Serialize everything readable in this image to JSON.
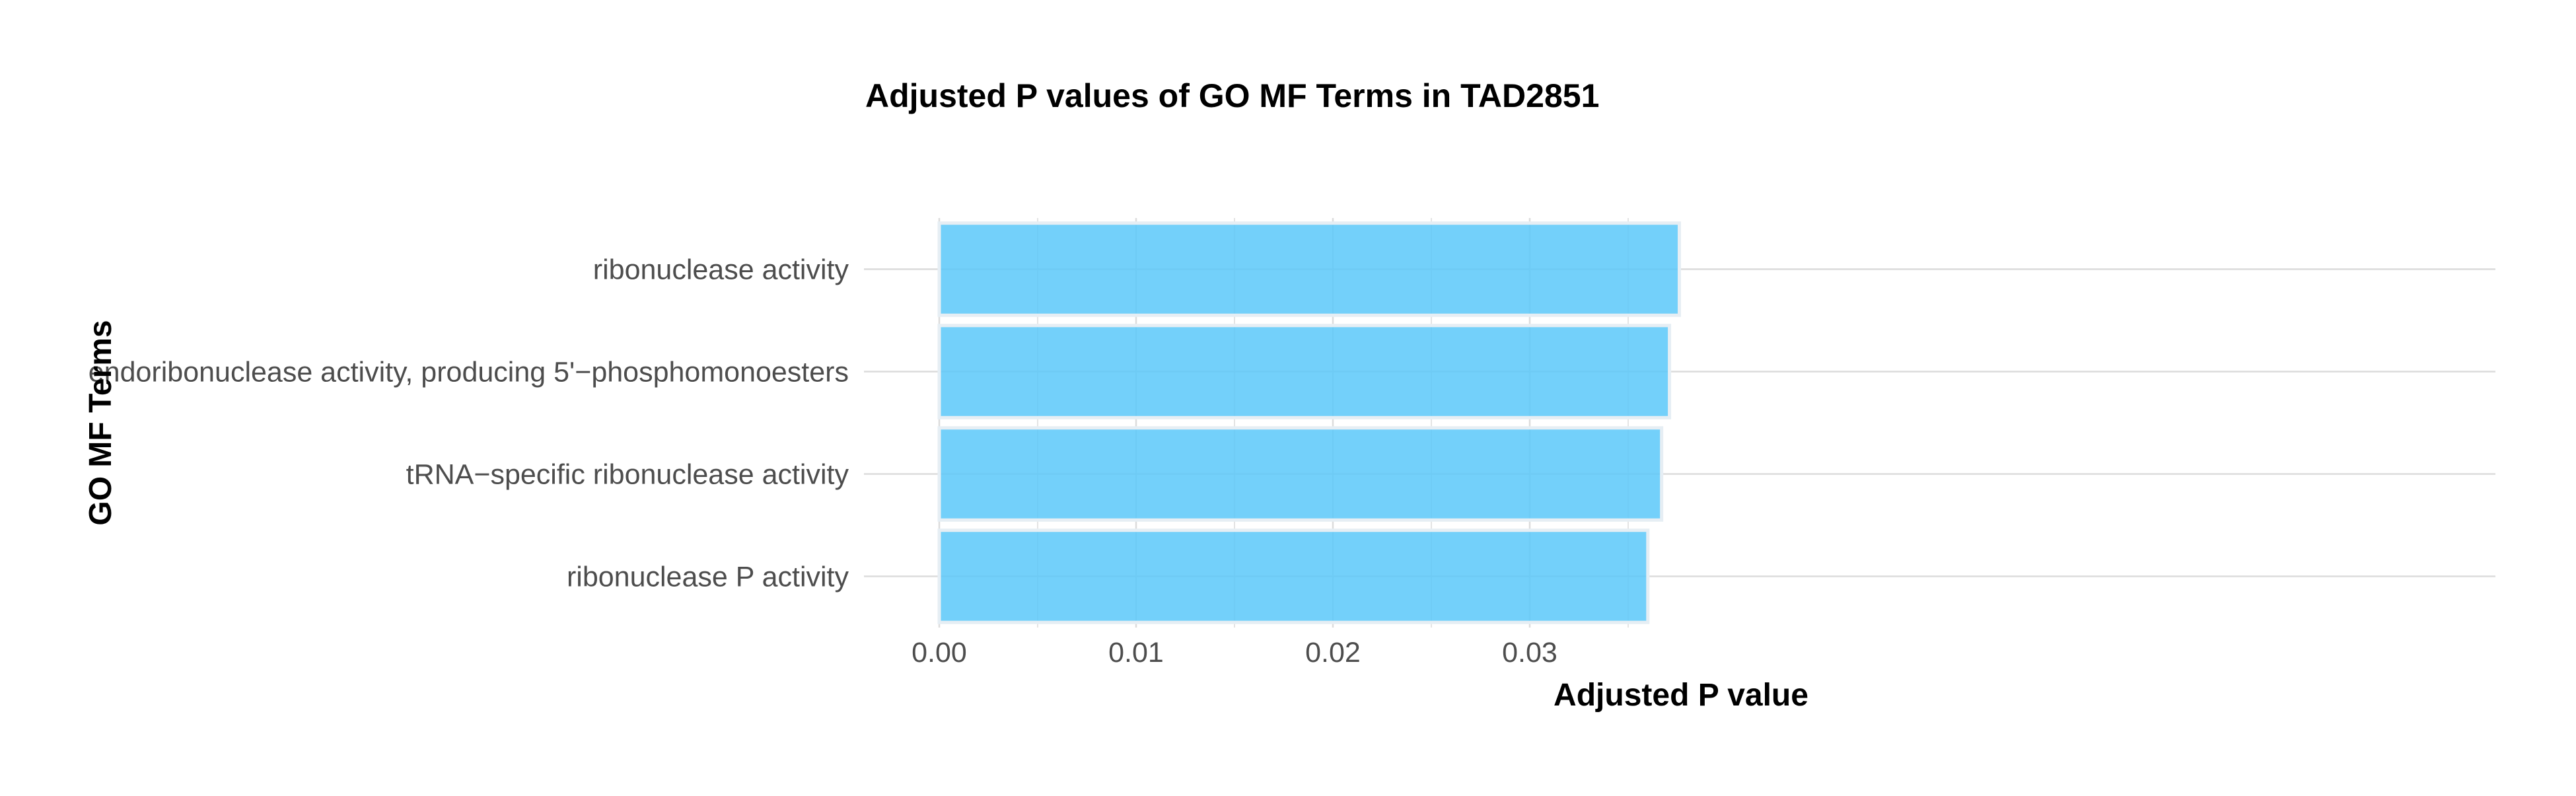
{
  "chart_data": {
    "type": "bar",
    "orientation": "horizontal",
    "title": "Adjusted P values of GO MF Terms in TAD2851",
    "xlabel": "Adjusted P value",
    "ylabel": "GO MF Terms",
    "categories": [
      "ribonuclease activity",
      "endoribonuclease activity, producing 5'−phosphomonoesters",
      "tRNA−specific ribonuclease activity",
      "ribonuclease P activity"
    ],
    "values": [
      0.0376,
      0.0371,
      0.0367,
      0.036
    ],
    "xlim": [
      0,
      0.0395
    ],
    "xticks": [
      0.0,
      0.01,
      0.02,
      0.03
    ],
    "xtick_labels": [
      "0.00",
      "0.01",
      "0.02",
      "0.03"
    ],
    "grid": true,
    "legend": "none",
    "colors": {
      "bar_fill": "#5BC8F9",
      "bar_stroke": "#E6EEF4",
      "grid": "#DCDCDC",
      "tick_text": "#4D4D4D",
      "title_text": "#000000"
    }
  }
}
